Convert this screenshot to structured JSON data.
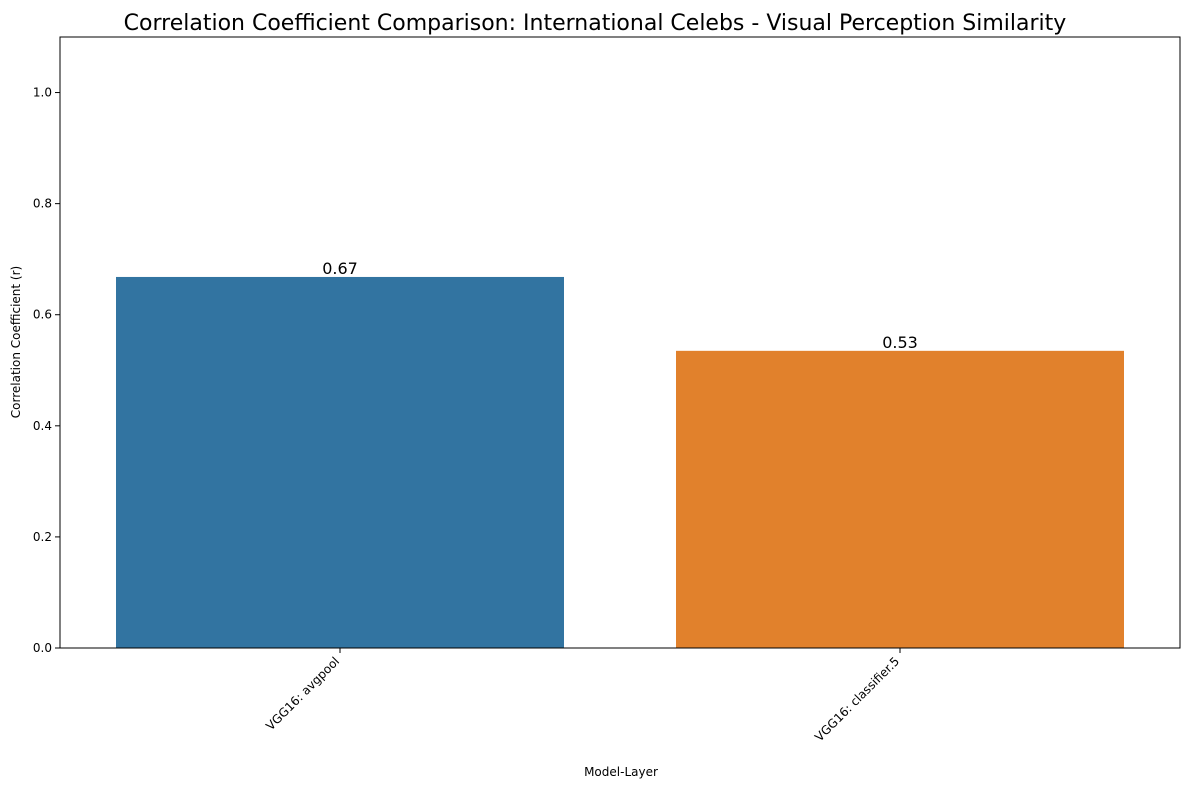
{
  "chart_data": {
    "type": "bar",
    "title": "Correlation Coefficient Comparison: International Celebs - Visual Perception Similarity",
    "xlabel": "Model-Layer",
    "ylabel": "Correlation Coefficient (r)",
    "categories": [
      "VGG16: avgpool",
      "VGG16: classifier.5"
    ],
    "values": [
      0.668,
      0.535
    ],
    "value_labels": [
      "0.67",
      "0.53"
    ],
    "colors": [
      "#3274a1",
      "#e1812c"
    ],
    "ylim": [
      0,
      1.1
    ],
    "yticks": [
      0.0,
      0.2,
      0.4,
      0.6,
      0.8,
      1.0
    ],
    "ytick_labels": [
      "0.0",
      "0.2",
      "0.4",
      "0.6",
      "0.8",
      "1.0"
    ],
    "xtick_rotation": -45,
    "grid": false,
    "legend": "none"
  }
}
